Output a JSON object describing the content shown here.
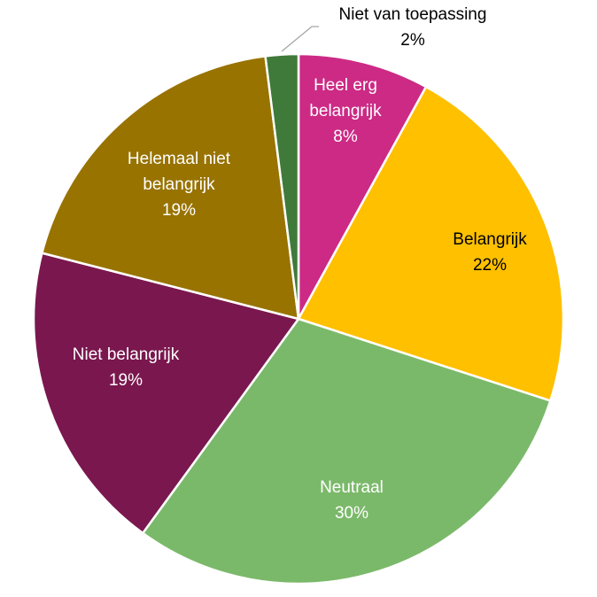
{
  "chart_data": {
    "type": "pie",
    "title": "",
    "slices": [
      {
        "name": "Heel erg belangrijk",
        "value": 8,
        "value_label": "8%",
        "color": "#CC2A85",
        "label_color": "#FFFFFF"
      },
      {
        "name": "Belangrijk",
        "value": 22,
        "value_label": "22%",
        "color": "#FFC000",
        "label_color": "#000000"
      },
      {
        "name": "Neutraal",
        "value": 30,
        "value_label": "30%",
        "color": "#7BB96A",
        "label_color": "#FFFFFF"
      },
      {
        "name": "Niet belangrijk",
        "value": 19,
        "value_label": "19%",
        "color": "#7A174E",
        "label_color": "#FFFFFF"
      },
      {
        "name": "Helemaal niet belangrijk",
        "value": 19,
        "value_label": "19%",
        "color": "#987300",
        "label_color": "#FFFFFF"
      },
      {
        "name": "Niet van toepassing",
        "value": 2,
        "value_label": "2%",
        "color": "#3F7A3A",
        "label_color": "#000000"
      }
    ],
    "legend": "none",
    "start": "top",
    "direction": "clockwise"
  }
}
